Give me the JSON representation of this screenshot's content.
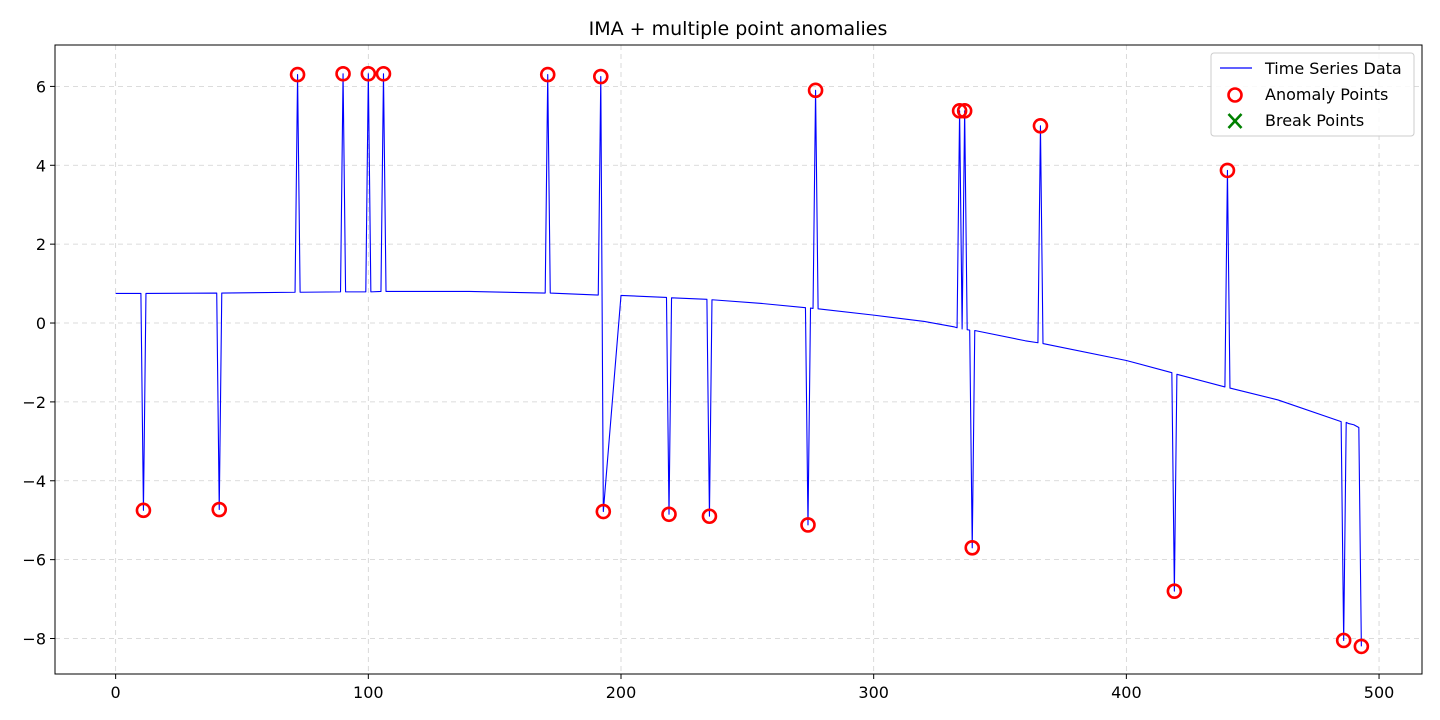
{
  "chart_data": {
    "type": "line",
    "title": "IMA + multiple point anomalies",
    "xlabel": "",
    "ylabel": "",
    "xlim": [
      -24,
      517
    ],
    "ylim": [
      -8.9,
      7.05
    ],
    "xticks": [
      0,
      100,
      200,
      300,
      400,
      500
    ],
    "yticks": [
      -8,
      -6,
      -4,
      -2,
      0,
      2,
      4,
      6
    ],
    "grid": true,
    "legend_position": "top-right",
    "colors": {
      "line": "#0000ff",
      "anomaly": "#ff0000",
      "break": "#008000"
    },
    "legend": [
      {
        "label": "Time Series Data",
        "marker": "line"
      },
      {
        "label": "Anomaly Points",
        "marker": "circle"
      },
      {
        "label": "Break Points",
        "marker": "x"
      }
    ],
    "series": [
      {
        "name": "Time Series Data",
        "x": [
          0,
          10,
          11,
          12,
          40,
          41,
          42,
          71,
          72,
          73,
          89,
          90,
          91,
          99,
          100,
          101,
          105,
          106,
          107,
          140,
          170,
          171,
          172,
          191,
          192,
          193,
          200,
          218,
          219,
          220,
          234,
          235,
          236,
          255,
          273,
          274,
          275,
          276,
          277,
          278,
          300,
          320,
          332,
          333,
          334,
          335,
          336,
          337,
          338,
          339,
          340,
          360,
          365,
          366,
          367,
          400,
          418,
          419,
          420,
          439,
          440,
          441,
          460,
          485,
          486,
          487,
          488,
          490,
          492,
          493
        ],
        "y": [
          0.75,
          0.75,
          -4.75,
          0.75,
          0.76,
          -4.73,
          0.76,
          0.78,
          6.3,
          0.78,
          0.79,
          6.32,
          0.79,
          0.79,
          6.32,
          0.79,
          0.8,
          6.32,
          0.8,
          0.8,
          0.76,
          6.3,
          0.76,
          0.71,
          6.25,
          -4.78,
          0.7,
          0.65,
          -4.85,
          0.64,
          0.6,
          -4.9,
          0.59,
          0.5,
          0.39,
          -5.12,
          0.38,
          0.37,
          5.9,
          0.36,
          0.2,
          0.04,
          -0.1,
          -0.12,
          5.38,
          -0.15,
          5.38,
          -0.17,
          -0.18,
          -5.7,
          -0.19,
          -0.45,
          -0.5,
          5.0,
          -0.52,
          -0.95,
          -1.26,
          -6.8,
          -1.3,
          -1.62,
          3.87,
          -1.65,
          -1.95,
          -2.5,
          -8.05,
          -2.52,
          -2.55,
          -2.58,
          -2.65,
          -8.2
        ]
      },
      {
        "name": "Anomaly Points",
        "x": [
          11,
          41,
          72,
          90,
          100,
          106,
          171,
          192,
          193,
          219,
          235,
          274,
          277,
          334,
          336,
          339,
          366,
          419,
          440,
          486,
          493
        ],
        "y": [
          -4.75,
          -4.73,
          6.3,
          6.32,
          6.32,
          6.32,
          6.3,
          6.25,
          -4.78,
          -4.85,
          -4.9,
          -5.12,
          5.9,
          5.38,
          5.38,
          -5.7,
          5.0,
          -6.8,
          3.87,
          -8.05,
          -8.2
        ]
      },
      {
        "name": "Break Points",
        "x": [],
        "y": []
      }
    ]
  }
}
